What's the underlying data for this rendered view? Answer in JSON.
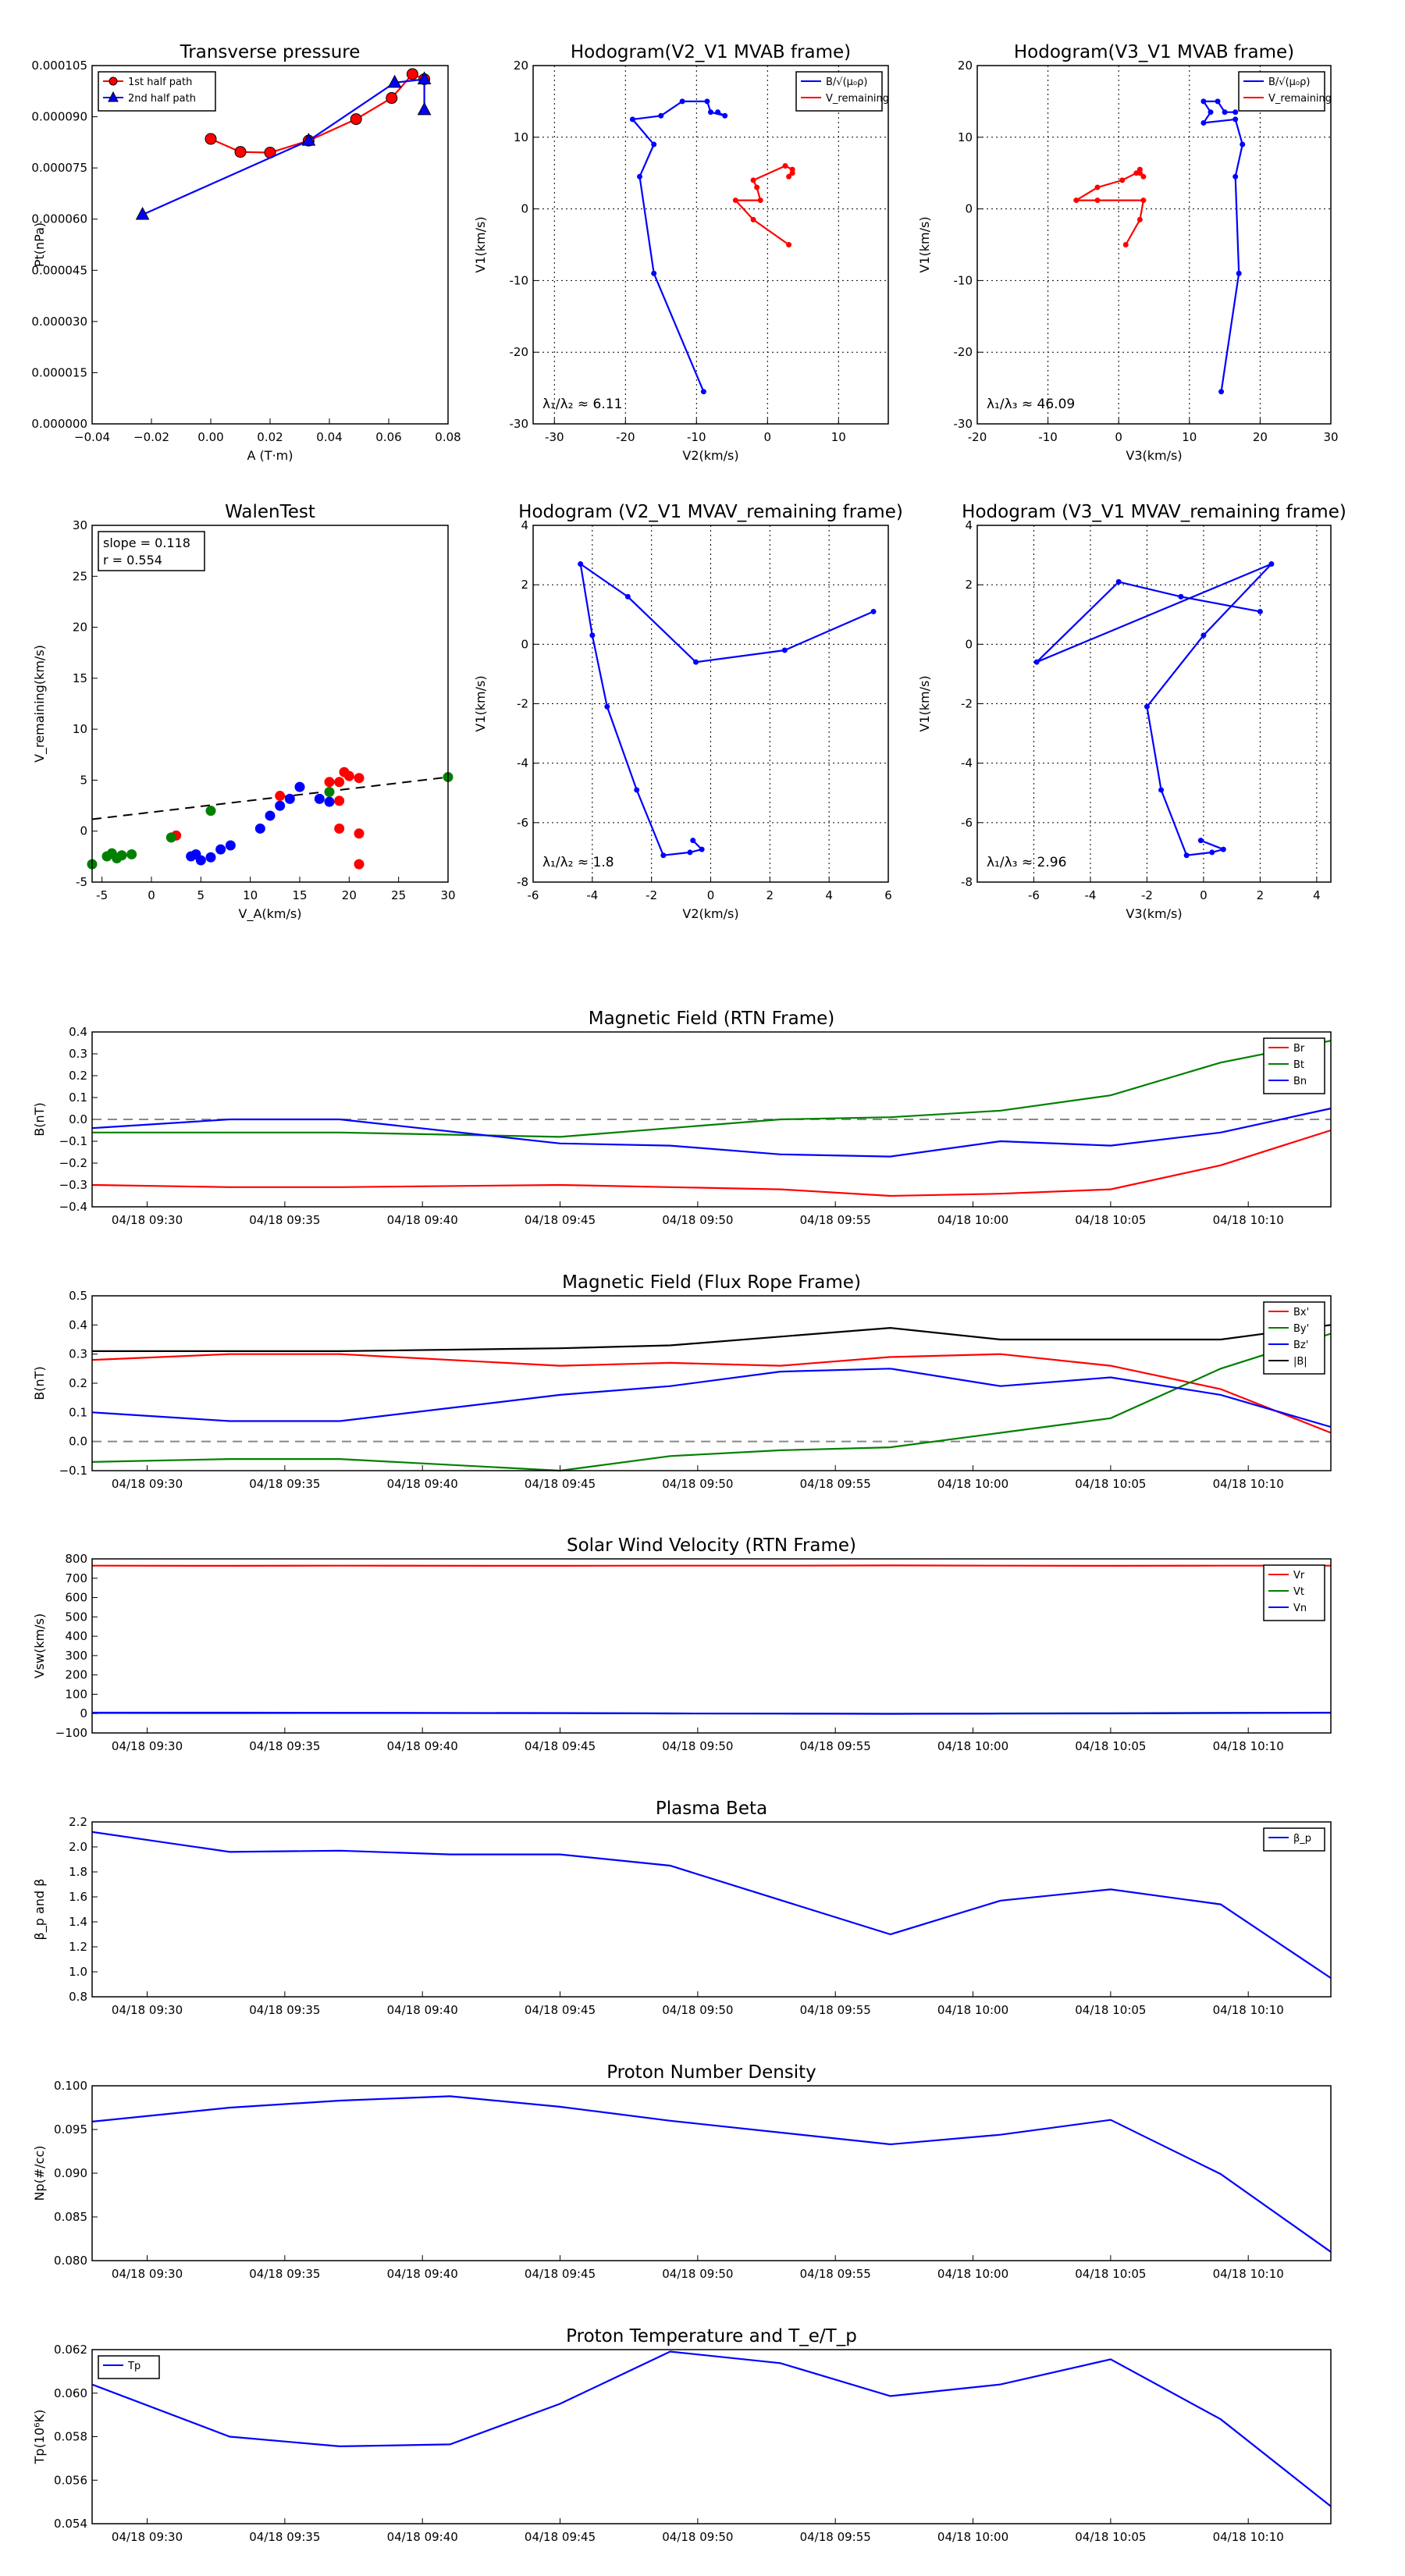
{
  "chart_data": [
    {
      "id": "tp",
      "type": "line",
      "title": "Transverse pressure",
      "xlabel": "A (T·m)",
      "ylabel": "Pt(nPa)",
      "xlim": [
        -0.04,
        0.08
      ],
      "ylim": [
        0.0,
        0.000105
      ],
      "xticks": [
        "−0.04",
        "−0.02",
        "0.00",
        "0.02",
        "0.04",
        "0.06",
        "0.08"
      ],
      "yticks": [
        "0.000000",
        "0.000015",
        "0.000030",
        "0.000045",
        "0.000060",
        "0.000075",
        "0.000090",
        "0.000105"
      ],
      "grid": false,
      "legend": "top-left",
      "series": [
        {
          "name": "1st half path",
          "color": "#ff0000",
          "marker": "circle",
          "x": [
            0.0,
            0.01,
            0.02,
            0.033,
            0.049,
            0.061,
            0.068,
            0.072
          ],
          "y": [
            8.35e-05,
            7.97e-05,
            7.95e-05,
            8.3e-05,
            8.93e-05,
            9.55e-05,
            0.0001025,
            0.000101
          ]
        },
        {
          "name": "2nd half path",
          "color": "#0000ff",
          "marker": "triangle",
          "x": [
            -0.023,
            0.033,
            0.062,
            0.072,
            0.072
          ],
          "y": [
            6.13e-05,
            8.3e-05,
            0.0001,
            0.000101,
            9.2e-05
          ]
        }
      ]
    },
    {
      "id": "h1",
      "type": "line",
      "title": "Hodogram(V2_V1 MVAB frame)",
      "xlabel": "V2(km/s)",
      "ylabel": "V1(km/s)",
      "xlim": [
        -33,
        17
      ],
      "ylim": [
        -30,
        20
      ],
      "xticks": [
        -30,
        -20,
        -10,
        0,
        10
      ],
      "yticks": [
        -30,
        -20,
        -10,
        0,
        10,
        20
      ],
      "grid": true,
      "annotation": "λ₁/λ₂ ≈ 6.11",
      "legend": "top-right",
      "series": [
        {
          "name": "B/√(μ₀ρ)",
          "color": "#0000ff",
          "x": [
            -9,
            -16,
            -18,
            -16,
            -19,
            -15,
            -12,
            -8.5,
            -8,
            -6,
            -7
          ],
          "y": [
            -25.5,
            -9,
            4.5,
            9,
            12.5,
            13,
            15,
            15,
            13.5,
            13,
            13.5
          ]
        },
        {
          "name": "V_remaining",
          "color": "#ff0000",
          "x": [
            3,
            -2,
            -4.5,
            -1,
            -1.5,
            -2,
            2.5,
            3.5,
            3,
            3.5
          ],
          "y": [
            -5,
            -1.5,
            1.2,
            1.2,
            3,
            4,
            6,
            5.5,
            4.5,
            5
          ]
        }
      ]
    },
    {
      "id": "h2",
      "type": "line",
      "title": "Hodogram(V3_V1 MVAB frame)",
      "xlabel": "V3(km/s)",
      "ylabel": "V1(km/s)",
      "xlim": [
        -20,
        30
      ],
      "ylim": [
        -30,
        20
      ],
      "xticks": [
        -20,
        -10,
        0,
        10,
        20,
        30
      ],
      "yticks": [
        -30,
        -20,
        -10,
        0,
        10,
        20
      ],
      "grid": true,
      "annotation": "λ₁/λ₃ ≈ 46.09",
      "legend": "top-right",
      "series": [
        {
          "name": "B/√(μ₀ρ)",
          "color": "#0000ff",
          "x": [
            14.5,
            17,
            16.5,
            17.5,
            16.5,
            12,
            13,
            12,
            14,
            15,
            16.5
          ],
          "y": [
            -25.5,
            -9,
            4.5,
            9,
            12.5,
            12,
            13.5,
            15,
            15,
            13.5,
            13.5
          ]
        },
        {
          "name": "V_remaining",
          "color": "#ff0000",
          "x": [
            1,
            3,
            3.5,
            -3,
            -6,
            -3,
            0.5,
            2.5,
            3,
            3.5,
            3
          ],
          "y": [
            -5,
            -1.5,
            1.2,
            1.2,
            1.2,
            3,
            4,
            5,
            5.5,
            4.5,
            5
          ]
        }
      ]
    },
    {
      "id": "wt",
      "type": "scatter",
      "title": "WalenTest",
      "xlabel": "V_A(km/s)",
      "ylabel": "V_remaining(km/s)",
      "xlim": [
        -6,
        30
      ],
      "ylim": [
        -6,
        30
      ],
      "xticks": [
        -5,
        0,
        5,
        10,
        15,
        20,
        25,
        30
      ],
      "yticks": [
        -5,
        0,
        5,
        10,
        15,
        20,
        25,
        30
      ],
      "grid": false,
      "annotation": [
        "slope = 0.118",
        "r = 0.554"
      ],
      "fit": {
        "slope": 0.118,
        "intercept": 1.05
      },
      "series": [
        {
          "color": "#0000ff",
          "x": [
            4,
            5,
            4.5,
            6,
            7,
            8,
            11,
            12,
            13,
            14,
            15,
            17,
            18
          ],
          "y": [
            -3.4,
            -3.8,
            -3.2,
            -3.5,
            -2.7,
            -2.3,
            -0.6,
            0.7,
            1.7,
            2.4,
            3.6,
            2.4,
            2.1
          ]
        },
        {
          "color": "#ff0000",
          "x": [
            2.5,
            13,
            18,
            19,
            19.5,
            20,
            21,
            21,
            21,
            19,
            19
          ],
          "y": [
            -1.3,
            2.7,
            4.1,
            2.2,
            5.1,
            4.7,
            4.5,
            -1.1,
            -4.2,
            -0.6,
            4.1
          ]
        },
        {
          "color": "#008000",
          "x": [
            -6,
            -4.5,
            -3.5,
            -4,
            -3,
            -2,
            2,
            6,
            18,
            30
          ],
          "y": [
            -4.2,
            -3.4,
            -3.6,
            -3.1,
            -3.3,
            -3.2,
            -1.5,
            1.2,
            3.1,
            4.6
          ]
        }
      ]
    },
    {
      "id": "h3",
      "type": "line",
      "title": "Hodogram (V2_V1 MVAV_remaining frame)",
      "xlabel": "V2(km/s)",
      "ylabel": "V1(km/s)",
      "xlim": [
        -6,
        6
      ],
      "ylim": [
        -8,
        4
      ],
      "xticks": [
        -6,
        -4,
        -2,
        0,
        2,
        4,
        6
      ],
      "yticks": [
        -8,
        -6,
        -4,
        -2,
        0,
        2,
        4
      ],
      "grid": true,
      "annotation": "λ₁/λ₂ ≈ 1.8",
      "series": [
        {
          "color": "#0000ff",
          "x": [
            5.5,
            2.5,
            -0.5,
            -2.8,
            -4.4,
            -4,
            -3.5,
            -2.5,
            -1.6,
            -0.7,
            -0.3,
            -0.6
          ],
          "y": [
            1.1,
            -0.2,
            -0.6,
            1.6,
            2.7,
            0.3,
            -2.1,
            -4.9,
            -7.1,
            -7,
            -6.9,
            -6.6
          ]
        }
      ]
    },
    {
      "id": "h4",
      "type": "line",
      "title": "Hodogram (V3_V1 MVAV_remaining frame)",
      "xlabel": "V3(km/s)",
      "ylabel": "V1(km/s)",
      "xlim": [
        -8,
        4.5
      ],
      "ylim": [
        -8,
        4
      ],
      "xticks": [
        -6,
        -4,
        -2,
        0,
        2,
        4
      ],
      "yticks": [
        -8,
        -6,
        -4,
        -2,
        0,
        2,
        4
      ],
      "grid": true,
      "annotation": "λ₁/λ₃ ≈ 2.96",
      "series": [
        {
          "color": "#0000ff",
          "x": [
            2,
            -0.8,
            -3,
            -5.9,
            2.4,
            0,
            -2,
            -1.5,
            -0.6,
            0.3,
            0.7,
            -0.1
          ],
          "y": [
            1.1,
            1.6,
            2.1,
            -0.6,
            2.7,
            0.3,
            -2.1,
            -4.9,
            -7.1,
            -7,
            -6.9,
            -6.6
          ]
        }
      ]
    },
    {
      "id": "mfrtn",
      "type": "line",
      "title": "Magnetic Field (RTN Frame)",
      "ylabel": "B(nT)",
      "ylim": [
        -0.4,
        0.4
      ],
      "yticks": [
        "−0.4",
        "−0.3",
        "−0.2",
        "−0.1",
        "0.0",
        "0.1",
        "0.2",
        "0.3",
        "0.4"
      ],
      "xticks": [
        "04/18 09:30",
        "04/18 09:35",
        "04/18 09:40",
        "04/18 09:45",
        "04/18 09:50",
        "04/18 09:55",
        "04/18 10:00",
        "04/18 10:05",
        "04/18 10:10"
      ],
      "x": [
        "09:28",
        "09:33",
        "09:37",
        "09:45",
        "09:49",
        "09:53",
        "09:57",
        "10:01",
        "10:05",
        "10:09",
        "10:13"
      ],
      "zero_line": true,
      "legend": "top-right",
      "series": [
        {
          "name": "Br",
          "color": "#ff0000",
          "values": [
            -0.3,
            -0.31,
            -0.31,
            -0.3,
            -0.31,
            -0.32,
            -0.35,
            -0.34,
            -0.32,
            -0.21,
            -0.05
          ]
        },
        {
          "name": "Bt",
          "color": "#008000",
          "values": [
            -0.06,
            -0.06,
            -0.06,
            -0.08,
            -0.04,
            0.0,
            0.01,
            0.04,
            0.11,
            0.26,
            0.36
          ]
        },
        {
          "name": "Bn",
          "color": "#0000ff",
          "values": [
            -0.04,
            0.0,
            0.0,
            -0.11,
            -0.12,
            -0.16,
            -0.17,
            -0.1,
            -0.12,
            -0.06,
            0.05
          ]
        }
      ]
    },
    {
      "id": "mffr",
      "type": "line",
      "title": "Magnetic Field (Flux Rope Frame)",
      "ylabel": "B(nT)",
      "ylim": [
        -0.1,
        0.5
      ],
      "yticks": [
        "−0.1",
        "0.0",
        "0.1",
        "0.2",
        "0.3",
        "0.4",
        "0.5"
      ],
      "xticks": [
        "04/18 09:30",
        "04/18 09:35",
        "04/18 09:40",
        "04/18 09:45",
        "04/18 09:50",
        "04/18 09:55",
        "04/18 10:00",
        "04/18 10:05",
        "04/18 10:10"
      ],
      "x": [
        "09:28",
        "09:33",
        "09:37",
        "09:45",
        "09:49",
        "09:53",
        "09:57",
        "10:01",
        "10:05",
        "10:09",
        "10:13"
      ],
      "zero_line": true,
      "legend": "top-right",
      "series": [
        {
          "name": "Bx'",
          "color": "#ff0000",
          "values": [
            0.28,
            0.3,
            0.3,
            0.26,
            0.27,
            0.26,
            0.29,
            0.3,
            0.26,
            0.18,
            0.03
          ]
        },
        {
          "name": "By'",
          "color": "#008000",
          "values": [
            -0.07,
            -0.06,
            -0.06,
            -0.1,
            -0.05,
            -0.03,
            -0.02,
            0.03,
            0.08,
            0.25,
            0.37
          ]
        },
        {
          "name": "Bz'",
          "color": "#0000ff",
          "values": [
            0.1,
            0.07,
            0.07,
            0.16,
            0.19,
            0.24,
            0.25,
            0.19,
            0.22,
            0.16,
            0.05
          ]
        },
        {
          "name": "|B|",
          "color": "#000000",
          "values": [
            0.31,
            0.31,
            0.31,
            0.32,
            0.33,
            0.36,
            0.39,
            0.35,
            0.35,
            0.35,
            0.4
          ]
        }
      ]
    },
    {
      "id": "sw",
      "type": "line",
      "title": "Solar Wind Velocity (RTN Frame)",
      "ylabel": "Vsw(km/s)",
      "ylim": [
        -100,
        800
      ],
      "yticks": [
        "−100",
        "0",
        "100",
        "200",
        "300",
        "400",
        "500",
        "600",
        "700",
        "800"
      ],
      "xticks": [
        "04/18 09:30",
        "04/18 09:35",
        "04/18 09:40",
        "04/18 09:45",
        "04/18 09:50",
        "04/18 09:55",
        "04/18 10:00",
        "04/18 10:05",
        "04/18 10:10"
      ],
      "x": [
        "09:28",
        "09:33",
        "09:37",
        "09:45",
        "09:49",
        "09:53",
        "09:57",
        "10:01",
        "10:05",
        "10:09",
        "10:13"
      ],
      "legend": "top-right",
      "series": [
        {
          "name": "Vr",
          "color": "#ff0000",
          "values": [
            765,
            764,
            765,
            764,
            765,
            765,
            766,
            765,
            764,
            765,
            765
          ]
        },
        {
          "name": "Vt",
          "color": "#008000",
          "values": [
            3,
            2,
            3,
            2,
            1,
            0,
            -1,
            1,
            2,
            4,
            5
          ]
        },
        {
          "name": "Vn",
          "color": "#0000ff",
          "values": [
            5,
            5,
            4,
            3,
            1,
            0,
            -1,
            0,
            1,
            3,
            4
          ]
        }
      ]
    },
    {
      "id": "pb",
      "type": "line",
      "title": "Plasma Beta",
      "ylabel": "β_p and β",
      "ylim": [
        0.8,
        2.2
      ],
      "yticks": [
        "0.8",
        "1.0",
        "1.2",
        "1.4",
        "1.6",
        "1.8",
        "2.0",
        "2.2"
      ],
      "xticks": [
        "04/18 09:30",
        "04/18 09:35",
        "04/18 09:40",
        "04/18 09:45",
        "04/18 09:50",
        "04/18 09:55",
        "04/18 10:00",
        "04/18 10:05",
        "04/18 10:10"
      ],
      "x": [
        "09:28",
        "09:33",
        "09:37",
        "09:41",
        "09:45",
        "09:49",
        "09:57",
        "10:01",
        "10:05",
        "10:09",
        "10:13"
      ],
      "legend": "top-right",
      "series": [
        {
          "name": "β_p",
          "color": "#0000ff",
          "values": [
            2.12,
            1.96,
            1.97,
            1.94,
            1.94,
            1.85,
            1.3,
            1.57,
            1.66,
            1.54,
            0.95
          ]
        }
      ]
    },
    {
      "id": "pnd",
      "type": "line",
      "title": "Proton Number Density",
      "ylabel": "Np(#/cc)",
      "ylim": [
        0.08,
        0.1
      ],
      "yticks": [
        "0.080",
        "0.085",
        "0.090",
        "0.095",
        "0.100"
      ],
      "xticks": [
        "04/18 09:30",
        "04/18 09:35",
        "04/18 09:40",
        "04/18 09:45",
        "04/18 09:50",
        "04/18 09:55",
        "04/18 10:00",
        "04/18 10:05",
        "04/18 10:10"
      ],
      "x": [
        "09:28",
        "09:33",
        "09:37",
        "09:41",
        "09:45",
        "09:49",
        "09:57",
        "10:01",
        "10:05",
        "10:09",
        "10:13"
      ],
      "series": [
        {
          "color": "#0000ff",
          "values": [
            0.0959,
            0.0975,
            0.0983,
            0.0988,
            0.0976,
            0.096,
            0.0933,
            0.0944,
            0.0961,
            0.0899,
            0.081
          ]
        }
      ]
    },
    {
      "id": "pt",
      "type": "line",
      "title": "Proton Temperature and T_e/T_p",
      "ylabel": "Tp(10⁶K)",
      "ylim": [
        0.053,
        0.062
      ],
      "yticks": [
        "0.054",
        "0.056",
        "0.058",
        "0.060",
        "0.062"
      ],
      "xticks": [
        "04/18 09:30",
        "04/18 09:35",
        "04/18 09:40",
        "04/18 09:45",
        "04/18 09:50",
        "04/18 09:55",
        "04/18 10:00",
        "04/18 10:05",
        "04/18 10:10"
      ],
      "x": [
        "09:28",
        "09:33",
        "09:37",
        "09:41",
        "09:45",
        "09:49",
        "09:53",
        "09:57",
        "10:01",
        "10:05",
        "10:09",
        "10:13"
      ],
      "legend": "top-left",
      "series": [
        {
          "name": "Tp",
          "color": "#0000ff",
          "values": [
            0.0602,
            0.0575,
            0.057,
            0.0571,
            0.0592,
            0.0619,
            0.0613,
            0.0596,
            0.0602,
            0.0615,
            0.0584,
            0.0539
          ]
        }
      ]
    }
  ]
}
